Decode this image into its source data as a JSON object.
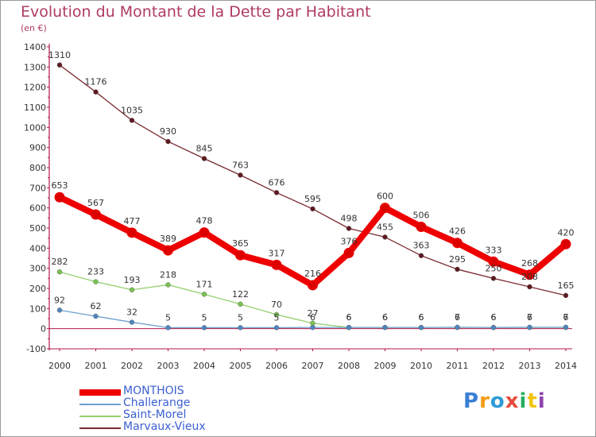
{
  "title": "Evolution du Montant de la Dette par Habitant",
  "unit": "(en €)",
  "logo": {
    "text": "Proxiti",
    "letters": [
      {
        "ch": "P",
        "color": "#3a7fd5"
      },
      {
        "ch": "r",
        "color": "#f39c12"
      },
      {
        "ch": "o",
        "color": "#2e9bd6"
      },
      {
        "ch": "x",
        "color": "#e74c3c"
      },
      {
        "ch": "i",
        "color": "#27ae60"
      },
      {
        "ch": "t",
        "color": "#f1c40f"
      },
      {
        "ch": "i",
        "color": "#8e44ad"
      }
    ]
  },
  "chart_data": {
    "type": "line",
    "title": "Evolution du Montant de la Dette par Habitant",
    "ylabel": "(en €)",
    "xlabel": "",
    "ylim": [
      -100,
      1400
    ],
    "yticks": [
      -100,
      0,
      100,
      200,
      300,
      400,
      500,
      600,
      700,
      800,
      900,
      1000,
      1100,
      1200,
      1300,
      1400
    ],
    "categories": [
      "2000",
      "2001",
      "2002",
      "2003",
      "2004",
      "2005",
      "2006",
      "2007",
      "2008",
      "2009",
      "2010",
      "2011",
      "2012",
      "2013",
      "2014"
    ],
    "grid": false,
    "legend": "bottom-left",
    "series": [
      {
        "name": "Marvaux-Vieux",
        "color": "#7a2a2f",
        "markerColor": "#5e1a20",
        "width": 1.3,
        "values": [
          1310,
          1176,
          1035,
          930,
          845,
          763,
          676,
          595,
          498,
          455,
          363,
          295,
          250,
          208,
          165
        ]
      },
      {
        "name": "Saint-Morel",
        "color": "#94d070",
        "markerColor": "#7ac152",
        "width": 1.3,
        "values": [
          282,
          233,
          193,
          218,
          171,
          122,
          70,
          27,
          6,
          6,
          6,
          6,
          6,
          6,
          6
        ]
      },
      {
        "name": "Challerange",
        "color": "#6ea0cf",
        "markerColor": "#4f86c0",
        "width": 1.3,
        "values": [
          92,
          62,
          32,
          5,
          5,
          5,
          5,
          6,
          6,
          6,
          6,
          7,
          6,
          7,
          7
        ]
      },
      {
        "name": "MONTHOIS",
        "color": "#ee0000",
        "markerColor": "#dd0000",
        "width": 8,
        "values": [
          653,
          567,
          477,
          389,
          478,
          365,
          317,
          216,
          376,
          600,
          506,
          426,
          333,
          268,
          420
        ]
      }
    ],
    "legend_order": [
      "MONTHOIS",
      "Challerange",
      "Saint-Morel",
      "Marvaux-Vieux"
    ]
  }
}
